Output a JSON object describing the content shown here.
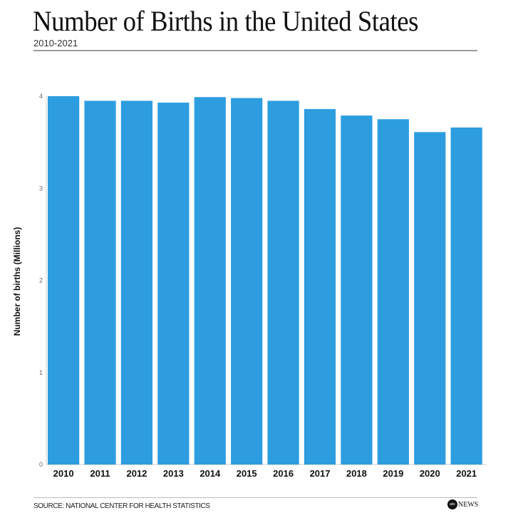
{
  "title": "Number of Births in the United States",
  "subtitle": "2010-2021",
  "source": "SOURCE: NATIONAL CENTER FOR HEALTH STATISTICS",
  "logo": "abc NEWS",
  "chart_data": {
    "type": "bar",
    "title": "Number of Births in the United States",
    "subtitle": "2010-2021",
    "xlabel": "",
    "ylabel": "Number of births (Millions)",
    "categories": [
      "2010",
      "2011",
      "2012",
      "2013",
      "2014",
      "2015",
      "2016",
      "2017",
      "2018",
      "2019",
      "2020",
      "2021"
    ],
    "values": [
      4.0,
      3.95,
      3.95,
      3.93,
      3.99,
      3.98,
      3.95,
      3.86,
      3.79,
      3.75,
      3.61,
      3.66
    ],
    "ylim": [
      0,
      4
    ],
    "yticks": [
      "0",
      "1",
      "2",
      "3",
      "4"
    ],
    "grid": false,
    "bar_color": "#2d9de0"
  }
}
